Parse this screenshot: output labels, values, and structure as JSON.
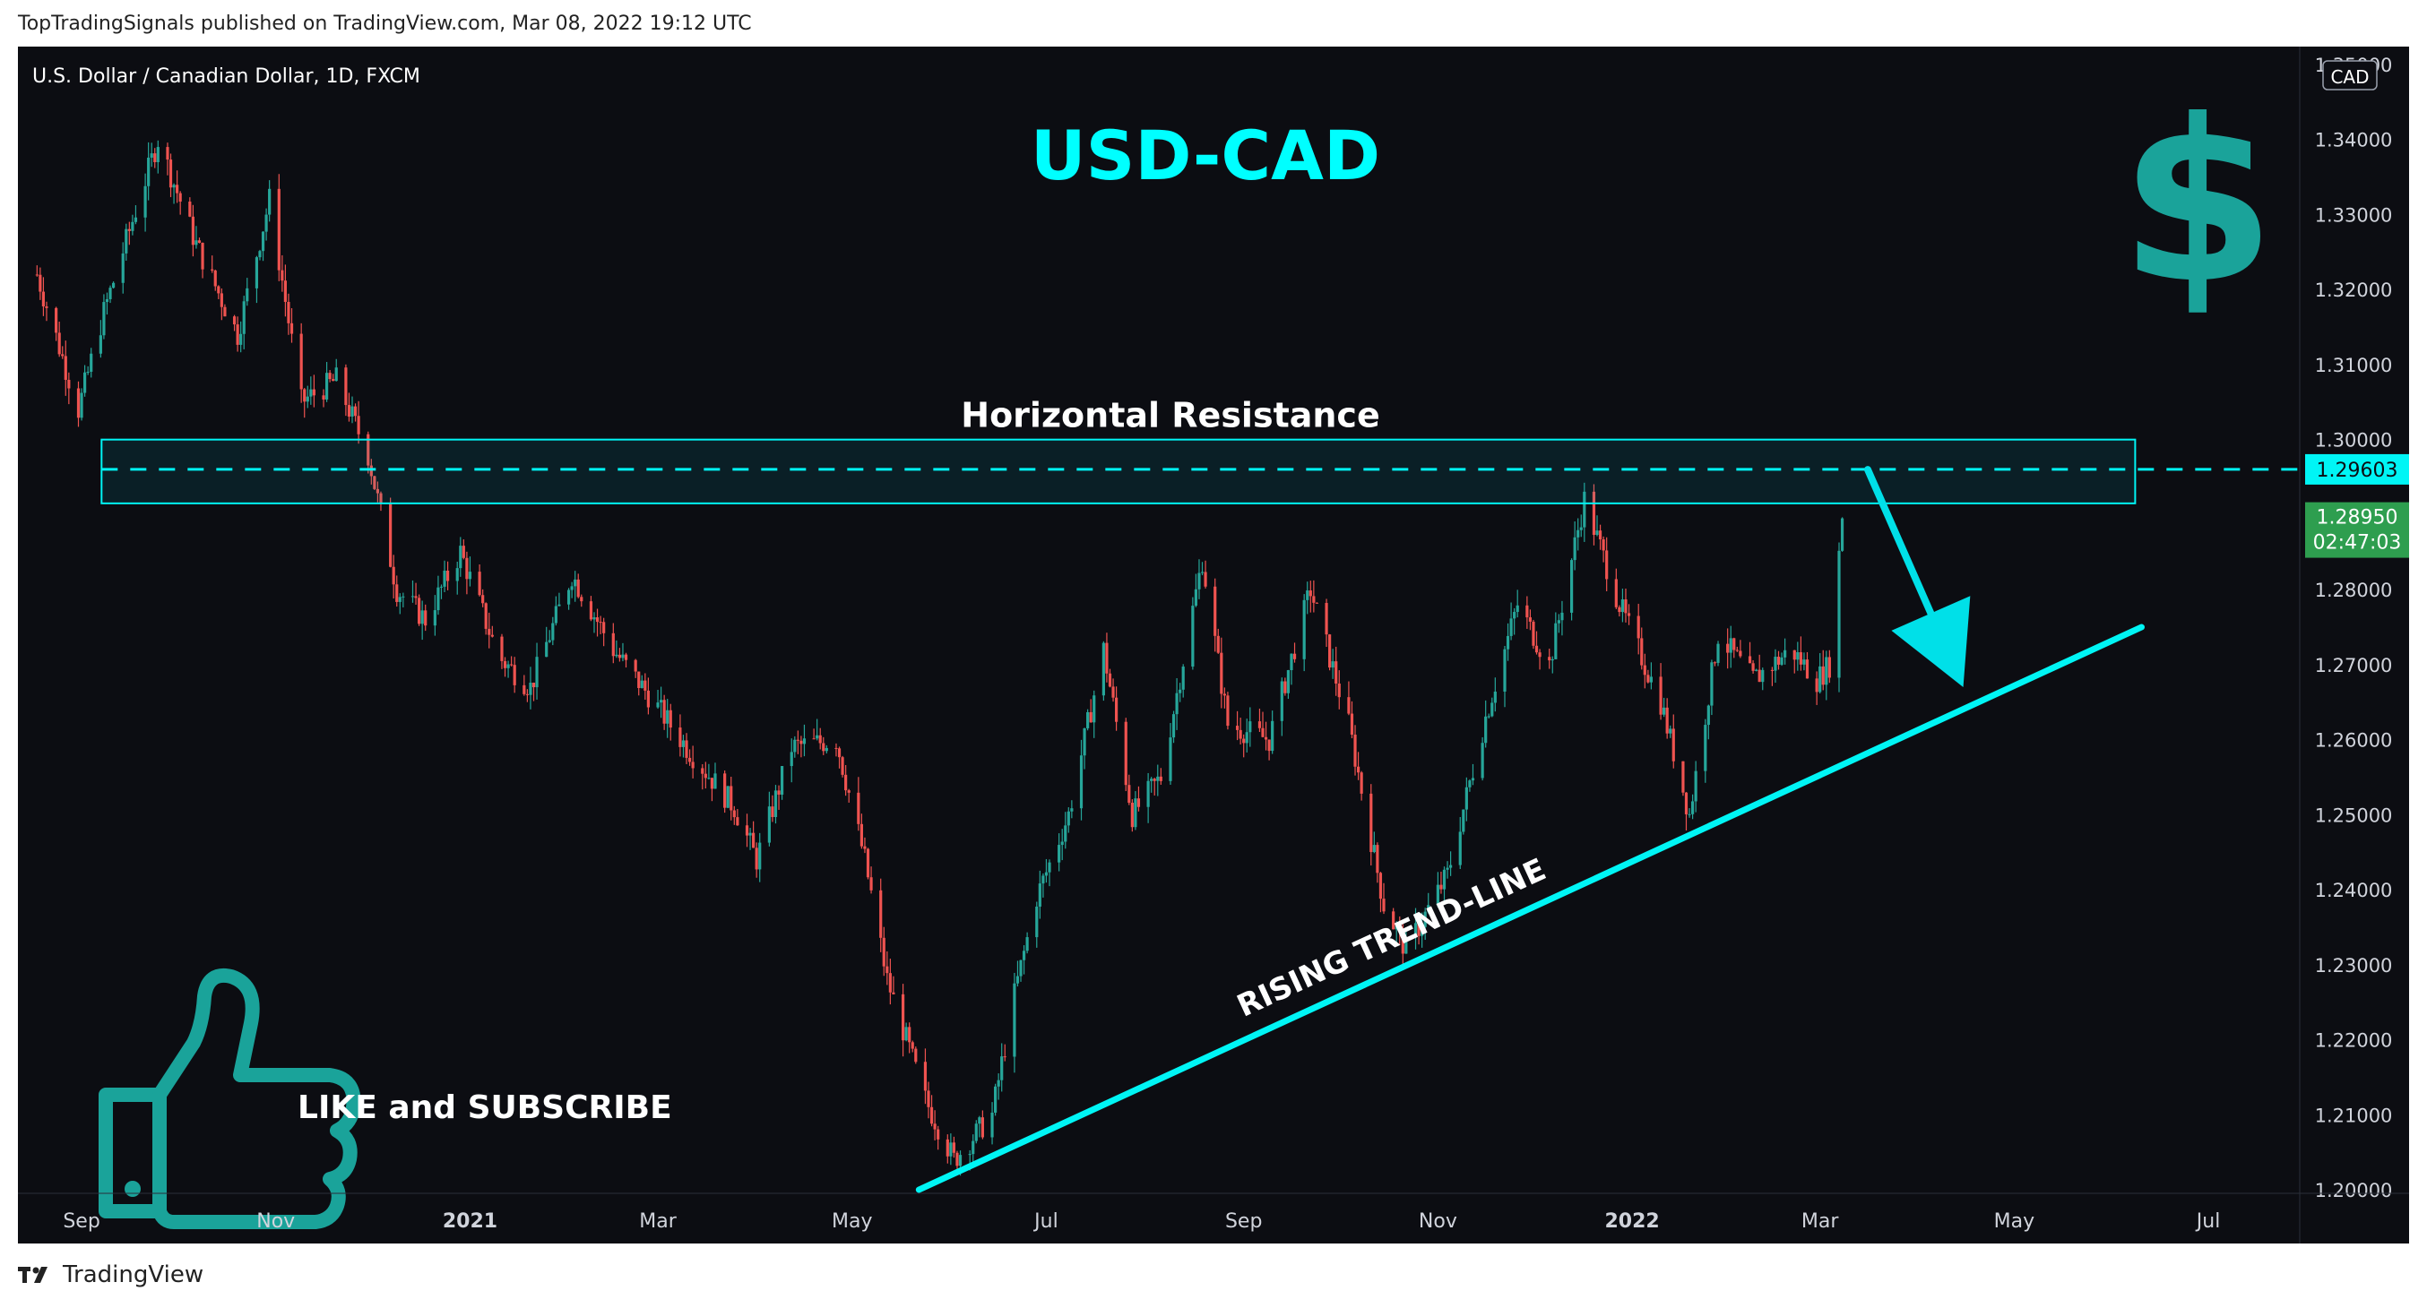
{
  "header": {
    "published_text": "TopTradingSignals published on TradingView.com, Mar 08, 2022 19:12 UTC"
  },
  "footer": {
    "brand": "TradingView"
  },
  "chart_data": {
    "type": "candlestick",
    "symbol_title": "U.S. Dollar / Canadian Dollar, 1D, FXCM",
    "title": "USD-CAD",
    "currency_badge": "CAD",
    "x_tick_labels": [
      "Sep",
      "Nov",
      "2021",
      "Mar",
      "May",
      "Jul",
      "Sep",
      "Nov",
      "2022",
      "Mar",
      "May",
      "Jul"
    ],
    "x_tick_dates": [
      "2020-09-01",
      "2020-11-01",
      "2021-01-01",
      "2021-03-01",
      "2021-05-01",
      "2021-07-01",
      "2021-09-01",
      "2021-11-01",
      "2022-01-01",
      "2022-03-01",
      "2022-05-01",
      "2022-07-01"
    ],
    "y_tick_labels": [
      "1.35000",
      "1.34000",
      "1.33000",
      "1.32000",
      "1.31000",
      "1.30000",
      "1.28000",
      "1.27000",
      "1.26000",
      "1.25000",
      "1.24000",
      "1.23000",
      "1.22000",
      "1.21000",
      "1.20000"
    ],
    "ylim": [
      1.2,
      1.35
    ],
    "series": [
      {
        "values": [
          {
            "date": "2020-08-18",
            "close": 1.322
          },
          {
            "date": "2020-08-31",
            "close": 1.304
          },
          {
            "date": "2020-09-08",
            "close": 1.317
          },
          {
            "date": "2020-09-25",
            "close": 1.34
          },
          {
            "date": "2020-10-07",
            "close": 1.326
          },
          {
            "date": "2020-10-20",
            "close": 1.314
          },
          {
            "date": "2020-10-30",
            "close": 1.332
          },
          {
            "date": "2020-11-09",
            "close": 1.305
          },
          {
            "date": "2020-11-20",
            "close": 1.308
          },
          {
            "date": "2020-11-30",
            "close": 1.298
          },
          {
            "date": "2020-12-09",
            "close": 1.28
          },
          {
            "date": "2020-12-18",
            "close": 1.276
          },
          {
            "date": "2020-12-29",
            "close": 1.285
          },
          {
            "date": "2021-01-10",
            "close": 1.271
          },
          {
            "date": "2021-01-20",
            "close": 1.267
          },
          {
            "date": "2021-02-02",
            "close": 1.282
          },
          {
            "date": "2021-02-15",
            "close": 1.272
          },
          {
            "date": "2021-02-26",
            "close": 1.266
          },
          {
            "date": "2021-03-10",
            "close": 1.259
          },
          {
            "date": "2021-03-25",
            "close": 1.251
          },
          {
            "date": "2021-04-01",
            "close": 1.244
          },
          {
            "date": "2021-04-12",
            "close": 1.259
          },
          {
            "date": "2021-04-26",
            "close": 1.26
          },
          {
            "date": "2021-05-05",
            "close": 1.244
          },
          {
            "date": "2021-05-12",
            "close": 1.228
          },
          {
            "date": "2021-05-24",
            "close": 1.212
          },
          {
            "date": "2021-06-02",
            "close": 1.204
          },
          {
            "date": "2021-06-14",
            "close": 1.21
          },
          {
            "date": "2021-06-21",
            "close": 1.226
          },
          {
            "date": "2021-06-28",
            "close": 1.239
          },
          {
            "date": "2021-07-08",
            "close": 1.25
          },
          {
            "date": "2021-07-19",
            "close": 1.272
          },
          {
            "date": "2021-07-28",
            "close": 1.25
          },
          {
            "date": "2021-08-06",
            "close": 1.255
          },
          {
            "date": "2021-08-19",
            "close": 1.284
          },
          {
            "date": "2021-08-27",
            "close": 1.262
          },
          {
            "date": "2021-09-09",
            "close": 1.26
          },
          {
            "date": "2021-09-22",
            "close": 1.28
          },
          {
            "date": "2021-10-04",
            "close": 1.262
          },
          {
            "date": "2021-10-15",
            "close": 1.238
          },
          {
            "date": "2021-10-22",
            "close": 1.232
          },
          {
            "date": "2021-11-04",
            "close": 1.242
          },
          {
            "date": "2021-11-16",
            "close": 1.263
          },
          {
            "date": "2021-11-26",
            "close": 1.278
          },
          {
            "date": "2021-12-06",
            "close": 1.27
          },
          {
            "date": "2021-12-17",
            "close": 1.292
          },
          {
            "date": "2021-12-28",
            "close": 1.278
          },
          {
            "date": "2022-01-10",
            "close": 1.265
          },
          {
            "date": "2022-01-19",
            "close": 1.25
          },
          {
            "date": "2022-01-28",
            "close": 1.274
          },
          {
            "date": "2022-02-08",
            "close": 1.268
          },
          {
            "date": "2022-02-20",
            "close": 1.272
          },
          {
            "date": "2022-02-28",
            "close": 1.268
          },
          {
            "date": "2022-03-04",
            "close": 1.27
          },
          {
            "date": "2022-03-08",
            "close": 1.2895
          }
        ]
      }
    ],
    "last_price": {
      "value": 1.2895,
      "label": "1.28950",
      "countdown": "02:47:03"
    },
    "resistance": {
      "label": "Horizontal Resistance",
      "level": 1.29603,
      "level_label": "1.29603",
      "zone_top": 1.3,
      "zone_bottom": 1.2915,
      "start_date": "2020-08-18",
      "end_date": "2022-06-08"
    },
    "trendline": {
      "label": "RISING TREND-LINE",
      "start": {
        "date": "2021-05-22",
        "price": 1.2
      },
      "end": {
        "date": "2022-06-10",
        "price": 1.275
      }
    },
    "projection_arrow": {
      "start": {
        "date": "2022-03-16",
        "price": 1.296
      },
      "end": {
        "date": "2022-04-15",
        "price": 1.267
      }
    },
    "cta": {
      "label": "LIKE and SUBSCRIBE"
    },
    "colors": {
      "background": "#0c0d12",
      "up_candle": "#26a69a",
      "down_candle": "#ef5350",
      "accent_cyan": "#00f5f5",
      "title_cyan": "#00ffff",
      "badge_teal": "#1aa39a",
      "price_badge_green": "#2e9e4f",
      "axis_text": "#d1d4dc"
    }
  }
}
